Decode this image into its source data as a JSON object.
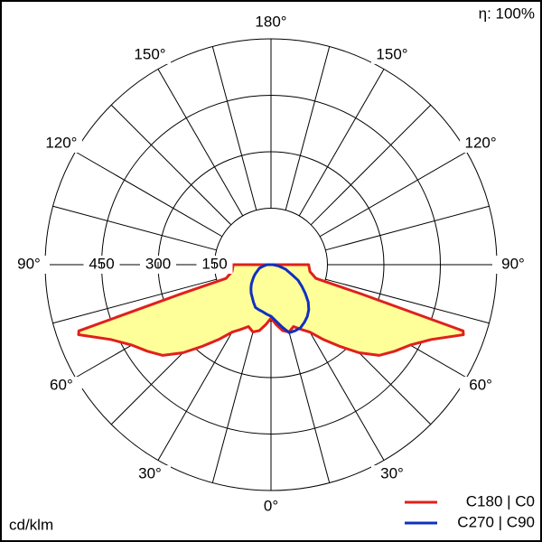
{
  "chart_data": {
    "type": "polar",
    "corner_note": "η: 100%",
    "unit_label": "cd/klm",
    "x": [
      -90,
      -80,
      -73,
      -72,
      -71,
      -70,
      -65,
      -60,
      -55,
      -50,
      -45,
      -40,
      -35,
      -30,
      -25,
      -20,
      -15,
      -10,
      -5,
      0,
      5,
      10,
      15,
      20,
      25,
      30,
      35,
      40,
      45,
      50,
      55,
      60,
      65,
      70,
      71,
      72,
      73,
      80,
      90
    ],
    "series": [
      {
        "name": "C180 | C0",
        "color": "#e0201c",
        "fill": "#ffff99",
        "values": [
          100,
          105,
          125,
          252,
          540,
          544,
          470,
          427,
          401,
          375,
          331,
          283,
          243,
          207,
          190,
          175,
          185,
          178,
          160,
          142,
          160,
          178,
          185,
          175,
          190,
          207,
          243,
          283,
          331,
          375,
          401,
          427,
          470,
          544,
          540,
          252,
          125,
          105,
          100
        ]
      },
      {
        "name": "C270 | C90",
        "color": "#1030c0",
        "values": [
          10,
          20,
          33,
          33,
          34,
          35,
          40,
          48,
          56,
          64,
          74,
          83,
          92,
          100,
          110,
          121,
          124,
          127,
          132,
          137,
          150,
          168,
          187,
          187,
          185,
          177,
          168,
          156,
          140,
          119,
          100,
          83,
          60,
          46,
          44,
          42,
          40,
          20,
          5
        ]
      }
    ],
    "rlim": [
      0,
      600
    ],
    "rticks": [
      150,
      300,
      450
    ],
    "rings": [
      150,
      300,
      450,
      600
    ],
    "spokes": [
      0,
      15,
      30,
      45,
      60,
      75,
      90,
      105,
      120,
      135,
      150,
      165,
      180
    ],
    "angle_ticks": [
      {
        "value": 0,
        "label": "0°"
      },
      {
        "value": 30,
        "label": "30°"
      },
      {
        "value": 60,
        "label": "60°"
      },
      {
        "value": 90,
        "label": "90°"
      },
      {
        "value": 120,
        "label": "120°"
      },
      {
        "value": 150,
        "label": "150°"
      },
      {
        "value": 180,
        "label": "180°"
      }
    ],
    "angle_ticks_left": [
      {
        "value": 30,
        "label": "30°"
      },
      {
        "value": 60,
        "label": "60°"
      },
      {
        "value": 90,
        "label": "90°"
      },
      {
        "value": 120,
        "label": "120°"
      },
      {
        "value": 150,
        "label": "150°"
      }
    ]
  }
}
